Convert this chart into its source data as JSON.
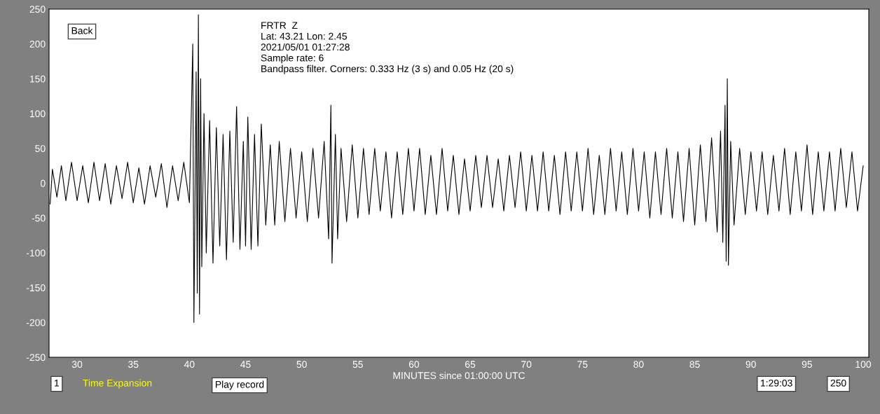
{
  "chart_data": {
    "type": "line",
    "xlabel": "MINUTES since 01:00:00 UTC",
    "annotations": [
      "FRTR  Z",
      "Lat: 43.21 Lon: 2.45",
      "2021/05/01 01:27:28",
      "Sample rate: 6",
      "Bandpass filter. Corners: 0.333 Hz (3 s) and 0.05 Hz (20 s)",
      "Back",
      "1",
      "Time Expansion",
      "Play record",
      "1:29:03",
      "250"
    ],
    "xlim": [
      27.5,
      100.5
    ],
    "xticks": [
      30,
      35,
      40,
      45,
      50,
      55,
      60,
      65,
      70,
      75,
      80,
      85,
      90,
      95,
      100
    ],
    "ylim": [
      -250,
      250
    ],
    "yticks": [
      -250,
      -200,
      -150,
      -100,
      -50,
      0,
      50,
      100,
      150,
      200,
      250
    ],
    "grid": false,
    "marker": "none",
    "line_style": "solid",
    "series": [
      {
        "color": "#000000",
        "x": [
          27.6,
          27.8,
          28.2,
          28.6,
          29.0,
          29.5,
          30.0,
          30.5,
          31.0,
          31.5,
          32.0,
          32.5,
          33.0,
          33.5,
          34.0,
          34.5,
          35.0,
          35.5,
          36.0,
          36.5,
          37.0,
          37.5,
          38.0,
          38.5,
          39.0,
          39.5,
          40.0,
          40.3,
          40.4,
          40.6,
          40.7,
          40.8,
          40.9,
          41.0,
          41.1,
          41.3,
          41.5,
          41.8,
          42.1,
          42.4,
          42.7,
          43.0,
          43.3,
          43.6,
          43.9,
          44.2,
          44.5,
          44.8,
          45.0,
          45.2,
          45.5,
          45.8,
          46.1,
          46.4,
          46.8,
          47.2,
          47.6,
          48.0,
          48.5,
          49.0,
          49.5,
          50.0,
          50.5,
          51.0,
          51.5,
          52.0,
          52.4,
          52.6,
          52.7,
          53.0,
          53.2,
          53.5,
          54.0,
          54.5,
          55.0,
          55.5,
          56.0,
          56.5,
          57.0,
          57.5,
          58.0,
          58.5,
          59.0,
          59.5,
          60.0,
          60.5,
          61.0,
          61.5,
          62.0,
          62.5,
          63.0,
          63.5,
          64.0,
          64.5,
          65.0,
          65.5,
          66.0,
          66.5,
          67.0,
          67.5,
          68.0,
          68.5,
          69.0,
          69.5,
          70.0,
          70.5,
          71.0,
          71.5,
          72.0,
          72.5,
          73.0,
          73.5,
          74.0,
          74.5,
          75.0,
          75.5,
          76.0,
          76.5,
          77.0,
          77.5,
          78.0,
          78.5,
          79.0,
          79.5,
          80.0,
          80.5,
          81.0,
          81.5,
          82.0,
          82.5,
          83.0,
          83.5,
          84.0,
          84.5,
          85.0,
          85.5,
          86.0,
          86.5,
          87.0,
          87.3,
          87.5,
          87.7,
          87.8,
          87.9,
          88.0,
          88.2,
          88.5,
          89.0,
          89.5,
          90.0,
          90.5,
          91.0,
          91.5,
          92.0,
          92.5,
          93.0,
          93.5,
          94.0,
          94.5,
          95.0,
          95.5,
          96.0,
          96.5,
          97.0,
          97.5,
          98.0,
          98.5,
          99.0,
          99.5,
          100.0
        ],
        "values": [
          -30,
          20,
          -20,
          25,
          -25,
          30,
          -25,
          25,
          -28,
          30,
          -25,
          28,
          -30,
          25,
          -22,
          30,
          -28,
          22,
          -30,
          25,
          -20,
          28,
          -35,
          25,
          -25,
          30,
          -28,
          200,
          -200,
          160,
          -158,
          242,
          -188,
          150,
          -120,
          100,
          -100,
          90,
          -115,
          80,
          -90,
          70,
          -110,
          75,
          -85,
          110,
          -95,
          60,
          -90,
          95,
          -95,
          70,
          -90,
          85,
          -60,
          55,
          -60,
          60,
          -55,
          50,
          -50,
          45,
          -55,
          50,
          -50,
          60,
          -80,
          112,
          -115,
          70,
          -80,
          50,
          -55,
          55,
          -50,
          50,
          -45,
          50,
          -40,
          45,
          -50,
          45,
          -45,
          50,
          -40,
          50,
          -45,
          40,
          -45,
          50,
          -40,
          40,
          -45,
          35,
          -40,
          40,
          -35,
          40,
          -35,
          35,
          -40,
          40,
          -35,
          45,
          -40,
          40,
          -40,
          45,
          -40,
          40,
          -45,
          45,
          -40,
          45,
          -40,
          50,
          -45,
          40,
          -45,
          50,
          -40,
          45,
          -45,
          50,
          -40,
          45,
          -50,
          45,
          -45,
          50,
          -50,
          45,
          -55,
          50,
          -60,
          55,
          -55,
          65,
          -70,
          75,
          -85,
          112,
          -112,
          150,
          -118,
          60,
          -60,
          50,
          -45,
          45,
          -40,
          45,
          -45,
          40,
          -40,
          50,
          -45,
          45,
          -40,
          55,
          -45,
          45,
          -40,
          45,
          -40,
          50,
          -35,
          45,
          -40,
          25
        ]
      }
    ]
  }
}
